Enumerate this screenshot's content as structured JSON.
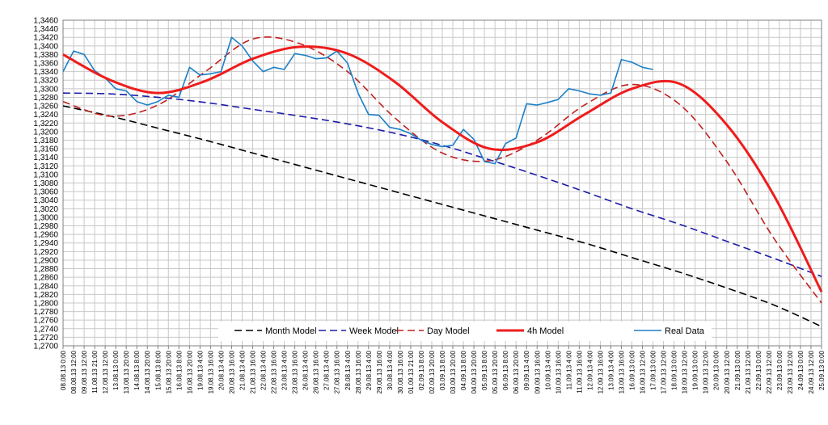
{
  "chart_data": {
    "type": "line",
    "title": "",
    "xlabel": "",
    "ylabel": "",
    "ylim": [
      1.27,
      1.346
    ],
    "yticks": [
      "1,2700",
      "1,2720",
      "1,2740",
      "1,2760",
      "1,2780",
      "1,2800",
      "1,2820",
      "1,2840",
      "1,2860",
      "1,2880",
      "1,2900",
      "1,2920",
      "1,2940",
      "1,2960",
      "1,2980",
      "1,3000",
      "1,3020",
      "1,3040",
      "1,3060",
      "1,3080",
      "1,3100",
      "1,3120",
      "1,3140",
      "1,3160",
      "1,3180",
      "1,3200",
      "1,3220",
      "1,3240",
      "1,3260",
      "1,3280",
      "1,3300",
      "1,3320",
      "1,3340",
      "1,3360",
      "1,3380",
      "1,3400",
      "1,3420",
      "1,3440",
      "1,3460"
    ],
    "xticks": [
      "08.08.13 0:00",
      "08.08.13 12:00",
      "09.08.13 12:00",
      "11.08.13 21:00",
      "12.08.13 12:00",
      "13.08.13 0:00",
      "13.08.13 20:00",
      "14.08.13 8:00",
      "14.08.13 20:00",
      "15.08.13 8:00",
      "15.08.13 20:00",
      "16.08.13 8:00",
      "16.08.13 20:00",
      "19.08.13 4:00",
      "19.08.13 16:00",
      "20.08.13 4:00",
      "20.08.13 16:00",
      "21.08.13 4:00",
      "21.08.13 16:00",
      "22.08.13 4:00",
      "22.08.13 16:00",
      "23.08.13 4:00",
      "23.08.13 16:00",
      "26.08.13 4:00",
      "26.08.13 16:00",
      "27.08.13 4:00",
      "27.08.13 16:00",
      "28.08.13 4:00",
      "28.08.13 16:00",
      "29.08.13 4:00",
      "29.08.13 16:00",
      "30.08.13 4:00",
      "30.08.13 16:00",
      "01.09.13 21:00",
      "02.09.13 8:00",
      "02.09.13 20:00",
      "03.09.13 8:00",
      "03.09.13 20:00",
      "04.09.13 8:00",
      "04.09.13 20:00",
      "05.09.13 8:00",
      "05.09.13 20:00",
      "06.09.13 8:00",
      "06.09.13 20:00",
      "09.09.13 4:00",
      "09.09.13 16:00",
      "10.09.13 4:00",
      "10.09.13 16:00",
      "11.09.13 4:00",
      "11.09.13 16:00",
      "12.09.13 4:00",
      "12.09.13 16:00",
      "13.09.13 4:00",
      "13.09.13 16:00",
      "16.09.13 0:00",
      "16.09.13 12:00",
      "17.09.13 0:00",
      "17.09.13 12:00",
      "18.09.13 0:00",
      "18.09.13 12:00",
      "19.09.13 0:00",
      "19.09.13 12:00",
      "20.09.13 0:00",
      "20.09.13 12:00",
      "21.09.13 0:00",
      "21.09.13 12:00",
      "22.09.13 0:00",
      "22.09.13 12:00",
      "23.09.13 0:00",
      "23.09.13 12:00",
      "24.09.13 0:00",
      "24.09.13 12:00",
      "25.09.13 0:00"
    ],
    "x": [
      0,
      4.5,
      9,
      13.5,
      18,
      22.5,
      27,
      31.5,
      36,
      40.5,
      45,
      49.5,
      54,
      58.5,
      63,
      67.5,
      72
    ],
    "legend_position": "bottom",
    "grid": true,
    "series": [
      {
        "name": "Month Model",
        "color": "#000000",
        "dash": "dash",
        "values": [
          1.326,
          1.3236,
          1.3208,
          1.318,
          1.315,
          1.312,
          1.309,
          1.306,
          1.303,
          1.3,
          1.297,
          1.294,
          1.2906,
          1.2872,
          1.2835,
          1.2795,
          1.2745
        ]
      },
      {
        "name": "Week Model",
        "color": "#1c1caa",
        "dash": "dash",
        "values": [
          1.329,
          1.3288,
          1.328,
          1.3268,
          1.3252,
          1.3236,
          1.3218,
          1.3196,
          1.3168,
          1.3134,
          1.3098,
          1.306,
          1.302,
          1.2984,
          1.2944,
          1.2904,
          1.2862
        ]
      },
      {
        "name": "Day Model",
        "color": "#c0201e",
        "dash": "dash",
        "values": [
          1.327,
          1.3236,
          1.3262,
          1.334,
          1.3416,
          1.3405,
          1.334,
          1.3232,
          1.315,
          1.3132,
          1.318,
          1.3262,
          1.331,
          1.3264,
          1.313,
          1.295,
          1.28
        ]
      },
      {
        "name": "4h Model",
        "color": "#ee1c1c",
        "dash": "solid",
        "values": [
          1.338,
          1.332,
          1.329,
          1.3318,
          1.337,
          1.3398,
          1.3382,
          1.3316,
          1.3222,
          1.316,
          1.3175,
          1.324,
          1.33,
          1.3312,
          1.3216,
          1.305,
          1.2826
        ]
      },
      {
        "name": "Real Data",
        "color": "#1a7fc8",
        "dash": "solid",
        "x": [
          0,
          1,
          2,
          3,
          4,
          5,
          6,
          7,
          8,
          9,
          10,
          11,
          12,
          13,
          14,
          15,
          16,
          17,
          18,
          19,
          20,
          21,
          22,
          23,
          24,
          25,
          26,
          27,
          28,
          29,
          30,
          31,
          32,
          33,
          34,
          35,
          36,
          37,
          38,
          39,
          40,
          41,
          42,
          43,
          44,
          45,
          46,
          47,
          48,
          49,
          50,
          51,
          52,
          53,
          54,
          55,
          56
        ],
        "values": [
          1.334,
          1.3388,
          1.338,
          1.3342,
          1.3325,
          1.33,
          1.3295,
          1.327,
          1.3262,
          1.327,
          1.3285,
          1.328,
          1.335,
          1.3332,
          1.3335,
          1.334,
          1.342,
          1.34,
          1.3365,
          1.334,
          1.335,
          1.3345,
          1.3382,
          1.3378,
          1.337,
          1.3372,
          1.3388,
          1.336,
          1.329,
          1.324,
          1.3238,
          1.321,
          1.3205,
          1.3195,
          1.318,
          1.317,
          1.3165,
          1.3168,
          1.3205,
          1.3182,
          1.313,
          1.3125,
          1.3172,
          1.3185,
          1.3265,
          1.3262,
          1.3268,
          1.3275,
          1.33,
          1.3295,
          1.3288,
          1.3285,
          1.329,
          1.3368,
          1.3362,
          1.335,
          1.3345
        ]
      }
    ]
  }
}
